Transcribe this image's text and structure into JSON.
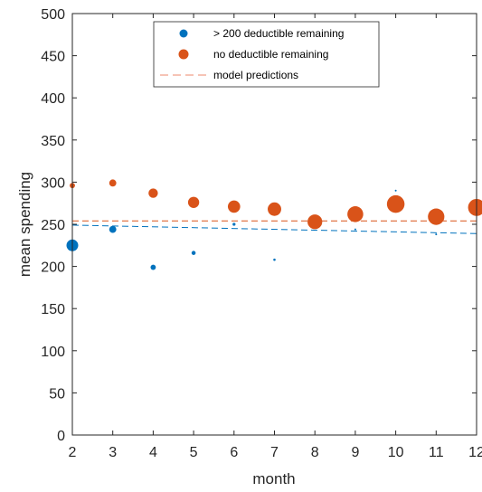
{
  "chart_data": {
    "type": "scatter",
    "xlabel": "month",
    "ylabel": "mean spending",
    "xlim": [
      2,
      12
    ],
    "ylim": [
      0,
      500
    ],
    "x_ticks": [
      "2",
      "3",
      "4",
      "5",
      "6",
      "7",
      "8",
      "9",
      "10",
      "11",
      "12"
    ],
    "y_ticks": [
      "0",
      "50",
      "100",
      "150",
      "200",
      "250",
      "300",
      "350",
      "400",
      "450",
      "500"
    ],
    "legend_position": "top-center",
    "series": [
      {
        "name": "> 200 deductible remaining",
        "color": "#0072BD",
        "marker": "circle",
        "points": [
          {
            "x": 2,
            "y": 225,
            "weight": 1.0
          },
          {
            "x": 3,
            "y": 244,
            "weight": 0.6
          },
          {
            "x": 4,
            "y": 199,
            "weight": 0.45
          },
          {
            "x": 5,
            "y": 216,
            "weight": 0.35
          },
          {
            "x": 6,
            "y": 250,
            "weight": 0.25
          },
          {
            "x": 7,
            "y": 208,
            "weight": 0.2
          },
          {
            "x": 8,
            "y": 254,
            "weight": 0.12
          },
          {
            "x": 9,
            "y": 244,
            "weight": 0.12
          },
          {
            "x": 10,
            "y": 290,
            "weight": 0.12
          },
          {
            "x": 11,
            "y": 238,
            "weight": 0.1
          }
        ]
      },
      {
        "name": "no deductible remaining",
        "color": "#D95319",
        "marker": "circle",
        "points": [
          {
            "x": 2,
            "y": 296,
            "weight": 0.45
          },
          {
            "x": 3,
            "y": 299,
            "weight": 0.6
          },
          {
            "x": 4,
            "y": 287,
            "weight": 0.8
          },
          {
            "x": 5,
            "y": 276,
            "weight": 0.95
          },
          {
            "x": 6,
            "y": 271,
            "weight": 1.05
          },
          {
            "x": 7,
            "y": 268,
            "weight": 1.15
          },
          {
            "x": 8,
            "y": 253,
            "weight": 1.25
          },
          {
            "x": 9,
            "y": 262,
            "weight": 1.35
          },
          {
            "x": 10,
            "y": 274,
            "weight": 1.5
          },
          {
            "x": 11,
            "y": 259,
            "weight": 1.4
          },
          {
            "x": 12,
            "y": 270,
            "weight": 1.45
          }
        ]
      }
    ],
    "model_predictions": {
      "name": "model predictions",
      "style": "dashed",
      "lines": [
        {
          "color": "#0072BD",
          "x": [
            2,
            12
          ],
          "y": [
            249,
            239
          ]
        },
        {
          "color": "#D95319",
          "x": [
            2,
            12
          ],
          "y": [
            254,
            254
          ]
        }
      ],
      "legend_color": "#F0A08A"
    }
  }
}
